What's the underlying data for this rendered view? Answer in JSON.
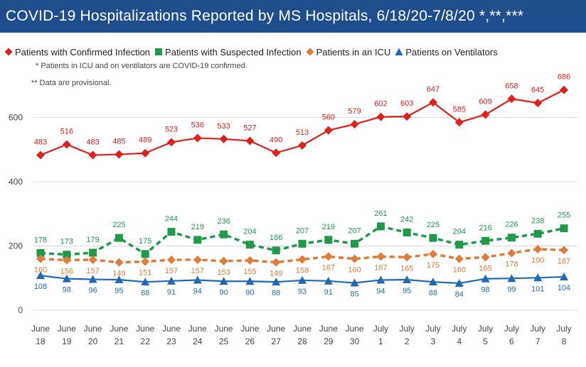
{
  "title": "COVID-19 Hospitalizations Reported by MS Hospitals, 6/18/20-7/8/20 *,**,***",
  "notes": [
    "* Patients in ICU and on ventilators are COVID-19 confirmed.",
    "** Data are provisional."
  ],
  "colors": {
    "title_bg": "#1f4e8c",
    "confirmed": "#e0201b",
    "suspected": "#1e9a49",
    "icu": "#e07b39",
    "ventilators": "#1f6ab8"
  },
  "chart_data": {
    "type": "line",
    "categories": [
      [
        "June",
        "18"
      ],
      [
        "June",
        "19"
      ],
      [
        "June",
        "20"
      ],
      [
        "June",
        "21"
      ],
      [
        "June",
        "22"
      ],
      [
        "June",
        "23"
      ],
      [
        "June",
        "24"
      ],
      [
        "June",
        "25"
      ],
      [
        "June",
        "26"
      ],
      [
        "June",
        "27"
      ],
      [
        "June",
        "28"
      ],
      [
        "June",
        "29"
      ],
      [
        "June",
        "30"
      ],
      [
        "July",
        "1"
      ],
      [
        "July",
        "2"
      ],
      [
        "July",
        "3"
      ],
      [
        "July",
        "4"
      ],
      [
        "July",
        "5"
      ],
      [
        "July",
        "6"
      ],
      [
        "July",
        "7"
      ],
      [
        "July",
        "8"
      ]
    ],
    "ylim": [
      0,
      700
    ],
    "yticks": [
      0,
      200,
      400,
      600
    ],
    "grid": "horizontal",
    "legend": "top-left",
    "series": [
      {
        "name": "Patients with Confirmed Infection",
        "color": "#e0201b",
        "marker": "diamond",
        "dash": false,
        "label_pos": "above",
        "values": [
          483,
          516,
          483,
          485,
          489,
          523,
          536,
          533,
          527,
          490,
          513,
          560,
          579,
          602,
          603,
          647,
          585,
          609,
          658,
          645,
          686
        ]
      },
      {
        "name": "Patients with Suspected Infection",
        "color": "#1e9a49",
        "marker": "square",
        "dash": true,
        "label_pos": "above",
        "values": [
          178,
          173,
          179,
          225,
          175,
          244,
          219,
          236,
          204,
          186,
          207,
          219,
          207,
          261,
          242,
          225,
          204,
          216,
          226,
          238,
          255
        ]
      },
      {
        "name": "Patients in an ICU",
        "color": "#e07b39",
        "marker": "diamond",
        "dash": true,
        "label_pos": "below",
        "values": [
          160,
          156,
          157,
          149,
          151,
          157,
          157,
          153,
          155,
          149,
          158,
          167,
          160,
          167,
          165,
          175,
          160,
          165,
          178,
          190,
          187
        ]
      },
      {
        "name": "Patients on Ventilators",
        "color": "#1f6ab8",
        "marker": "triangle",
        "dash": false,
        "label_pos": "below",
        "values": [
          108,
          98,
          96,
          95,
          88,
          91,
          94,
          90,
          90,
          88,
          93,
          91,
          85,
          94,
          95,
          88,
          84,
          98,
          99,
          101,
          104
        ]
      }
    ]
  }
}
